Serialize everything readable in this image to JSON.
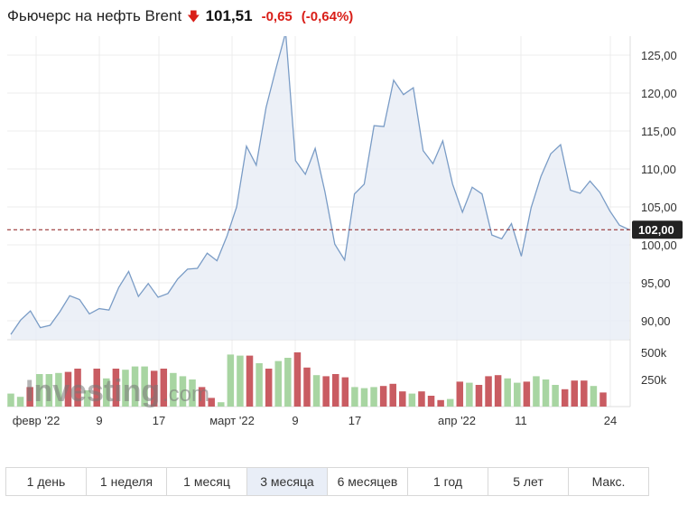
{
  "header": {
    "title": "Фьючерс на нефть Brent",
    "price": "101,51",
    "change": "-0,65",
    "change_pct": "(-0,64%)",
    "arrow_icon": "arrow-down-icon"
  },
  "watermark": {
    "brand": "Investing",
    "suffix": ".com"
  },
  "colors": {
    "line": "#7a9cc6",
    "fill": "#e9edf6",
    "up": "#a8d5a2",
    "down": "#c95c62",
    "price_line": "#8b1a1a",
    "price_label_bg": "#222222"
  },
  "tabs": [
    {
      "label": "1 день"
    },
    {
      "label": "1 неделя"
    },
    {
      "label": "1 месяц"
    },
    {
      "label": "3 месяца",
      "active": true
    },
    {
      "label": "6 месяцев"
    },
    {
      "label": "1 год"
    },
    {
      "label": "5 лет"
    },
    {
      "label": "Макс."
    }
  ],
  "chart_data": {
    "type": "area",
    "ylim": [
      87.5,
      127.5
    ],
    "y_ticks": [
      "90,00",
      "95,00",
      "100,00",
      "105,00",
      "110,00",
      "115,00",
      "120,00",
      "125,00"
    ],
    "x_ticks": [
      "февр '22",
      "9",
      "17",
      "март '22",
      "9",
      "17",
      "апр '22",
      "11",
      "24"
    ],
    "current_price_label": "102,00",
    "current_price": 102.0,
    "price": [
      88.2,
      90.1,
      91.3,
      89.1,
      89.4,
      91.2,
      93.3,
      92.8,
      90.9,
      91.6,
      91.4,
      94.4,
      96.5,
      93.2,
      94.9,
      93.1,
      93.6,
      95.5,
      96.8,
      96.9,
      98.9,
      97.9,
      101.1,
      105.0,
      113.0,
      110.5,
      118.1,
      123.2,
      128.0,
      111.1,
      109.3,
      112.7,
      107.0,
      100.1,
      98.0,
      106.7,
      108.0,
      115.7,
      115.6,
      121.7,
      119.8,
      120.7,
      112.4,
      110.7,
      113.7,
      108.0,
      104.3,
      107.6,
      106.7,
      101.3,
      100.8,
      102.8,
      98.5,
      104.9,
      109.0,
      112.0,
      113.2,
      107.2,
      106.8,
      108.4,
      106.9,
      104.5,
      102.6,
      102.0
    ],
    "volume_ticks": [
      "500k",
      "250k"
    ],
    "volume_max": 600000,
    "volume": [
      {
        "v": 120000,
        "up": true
      },
      {
        "v": 90000,
        "up": true
      },
      {
        "v": 180000,
        "up": false
      },
      {
        "v": 300000,
        "up": true
      },
      {
        "v": 300000,
        "up": true
      },
      {
        "v": 310000,
        "up": true
      },
      {
        "v": 320000,
        "up": false
      },
      {
        "v": 350000,
        "up": false
      },
      {
        "v": 150000,
        "up": true
      },
      {
        "v": 350000,
        "up": false
      },
      {
        "v": 260000,
        "up": true
      },
      {
        "v": 350000,
        "up": false
      },
      {
        "v": 340000,
        "up": true
      },
      {
        "v": 370000,
        "up": true
      },
      {
        "v": 370000,
        "up": true
      },
      {
        "v": 330000,
        "up": false
      },
      {
        "v": 350000,
        "up": false
      },
      {
        "v": 310000,
        "up": true
      },
      {
        "v": 280000,
        "up": true
      },
      {
        "v": 250000,
        "up": true
      },
      {
        "v": 180000,
        "up": false
      },
      {
        "v": 80000,
        "up": false
      },
      {
        "v": 40000,
        "up": true
      },
      {
        "v": 480000,
        "up": true
      },
      {
        "v": 470000,
        "up": true
      },
      {
        "v": 470000,
        "up": false
      },
      {
        "v": 400000,
        "up": true
      },
      {
        "v": 350000,
        "up": false
      },
      {
        "v": 420000,
        "up": true
      },
      {
        "v": 450000,
        "up": true
      },
      {
        "v": 500000,
        "up": false
      },
      {
        "v": 360000,
        "up": false
      },
      {
        "v": 290000,
        "up": true
      },
      {
        "v": 280000,
        "up": false
      },
      {
        "v": 300000,
        "up": false
      },
      {
        "v": 270000,
        "up": false
      },
      {
        "v": 180000,
        "up": true
      },
      {
        "v": 170000,
        "up": true
      },
      {
        "v": 180000,
        "up": true
      },
      {
        "v": 190000,
        "up": false
      },
      {
        "v": 210000,
        "up": false
      },
      {
        "v": 140000,
        "up": false
      },
      {
        "v": 120000,
        "up": true
      },
      {
        "v": 140000,
        "up": false
      },
      {
        "v": 100000,
        "up": false
      },
      {
        "v": 60000,
        "up": false
      },
      {
        "v": 70000,
        "up": true
      },
      {
        "v": 230000,
        "up": false
      },
      {
        "v": 220000,
        "up": true
      },
      {
        "v": 200000,
        "up": false
      },
      {
        "v": 280000,
        "up": false
      },
      {
        "v": 290000,
        "up": false
      },
      {
        "v": 260000,
        "up": true
      },
      {
        "v": 220000,
        "up": true
      },
      {
        "v": 230000,
        "up": false
      },
      {
        "v": 280000,
        "up": true
      },
      {
        "v": 250000,
        "up": true
      },
      {
        "v": 200000,
        "up": true
      },
      {
        "v": 160000,
        "up": false
      },
      {
        "v": 240000,
        "up": false
      },
      {
        "v": 240000,
        "up": false
      },
      {
        "v": 190000,
        "up": true
      },
      {
        "v": 130000,
        "up": false
      }
    ]
  }
}
